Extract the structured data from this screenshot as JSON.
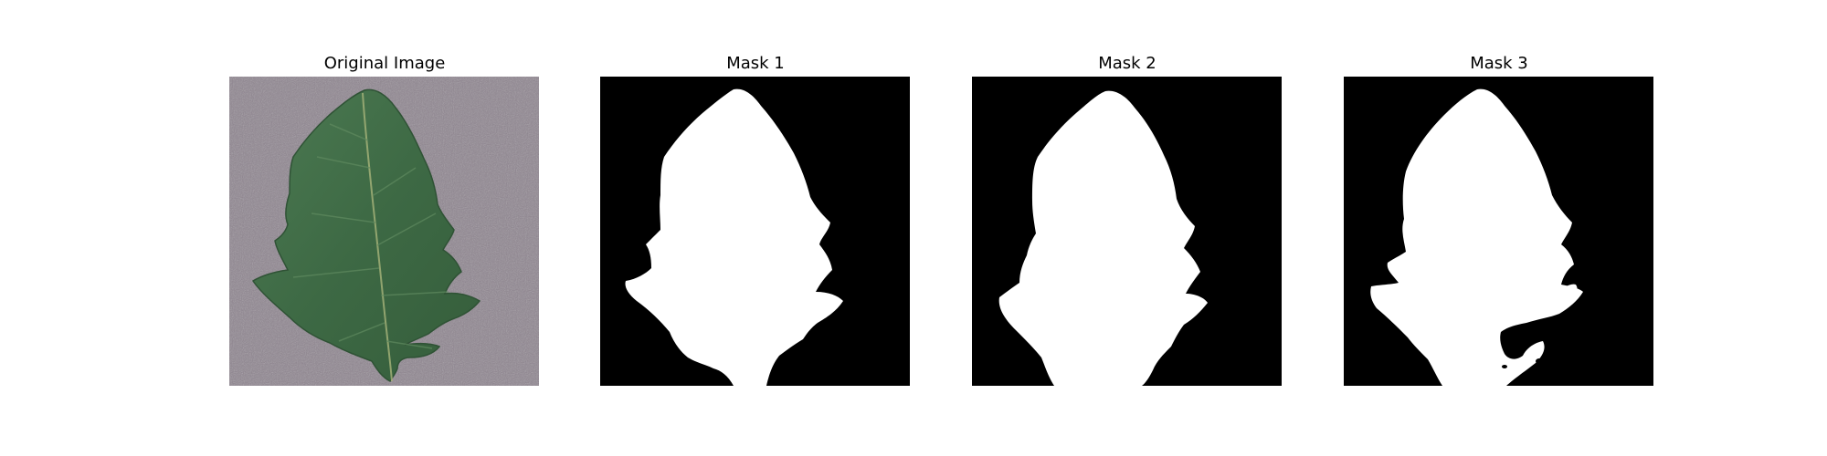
{
  "panels": [
    {
      "title": "Original Image"
    },
    {
      "title": "Mask 1"
    },
    {
      "title": "Mask 2"
    },
    {
      "title": "Mask 3"
    }
  ],
  "colors": {
    "background": "#ffffff",
    "mask_background": "#000000",
    "mask_foreground": "#ffffff",
    "photo_background": "#8f8590",
    "leaf": "#3f6b45"
  },
  "icons": [
    "leaf-photo",
    "binary-mask"
  ]
}
